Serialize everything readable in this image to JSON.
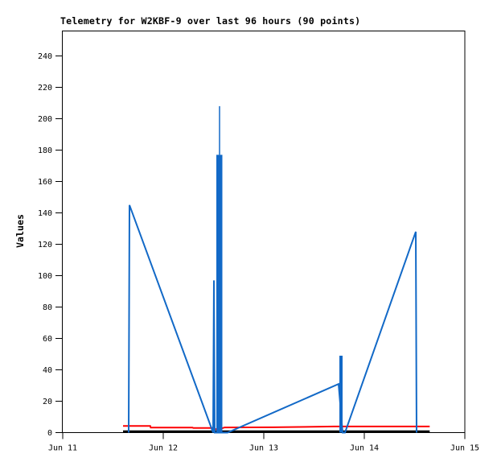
{
  "chart_data": {
    "type": "line",
    "title": "Telemetry for W2KBF-9 over last 96 hours (90 points)",
    "xlabel": "",
    "ylabel": "Values",
    "grid": false,
    "legend": "none",
    "x_tick_labels": [
      "Jun 11",
      "Jun 12",
      "Jun 13",
      "Jun 14",
      "Jun 15"
    ],
    "x_range_days": [
      0,
      4
    ],
    "y_ticks": [
      0,
      20,
      40,
      60,
      80,
      100,
      120,
      140,
      160,
      180,
      200,
      220,
      240
    ],
    "ylim": [
      0,
      256
    ],
    "series": [
      {
        "name": "channel-black-baseline",
        "color": "#000000",
        "stroke_width": 3,
        "points": [
          [
            0.6,
            0.6
          ],
          [
            3.65,
            0.6
          ]
        ]
      },
      {
        "name": "channel-red",
        "color": "#fd0002",
        "stroke_width": 2,
        "points": [
          [
            0.6,
            4.2
          ],
          [
            0.87,
            4.2
          ],
          [
            0.875,
            3.2
          ],
          [
            1.29,
            3.2
          ],
          [
            1.3,
            2.9
          ],
          [
            1.49,
            2.9
          ],
          [
            1.54,
            1.8
          ],
          [
            1.61,
            3.3
          ],
          [
            2.1,
            3.4
          ],
          [
            2.7,
            3.9
          ],
          [
            3.65,
            3.9
          ]
        ]
      },
      {
        "name": "channel-blue",
        "color": "#1269c7",
        "stroke_width": 2,
        "points": [
          [
            0.656,
            0
          ],
          [
            0.664,
            145
          ],
          [
            1.496,
            0
          ],
          [
            1.504,
            97
          ],
          [
            1.512,
            0
          ],
          [
            1.64,
            0
          ],
          [
            2.744,
            31
          ],
          [
            2.784,
            0
          ],
          [
            2.808,
            0
          ],
          [
            3.512,
            128
          ],
          [
            3.52,
            0
          ]
        ],
        "bars": [
          {
            "x0": 1.528,
            "x1": 1.588,
            "value": 177
          },
          {
            "x0": 2.752,
            "x1": 2.784,
            "value": 49
          }
        ],
        "spikes": [
          {
            "x": 1.56,
            "from": 177,
            "to": 208
          }
        ]
      }
    ]
  },
  "colors": {
    "background": "#ffffff",
    "axis": "#000000",
    "series_blue": "#1269c7",
    "series_red": "#fd0002",
    "series_black": "#000000"
  }
}
